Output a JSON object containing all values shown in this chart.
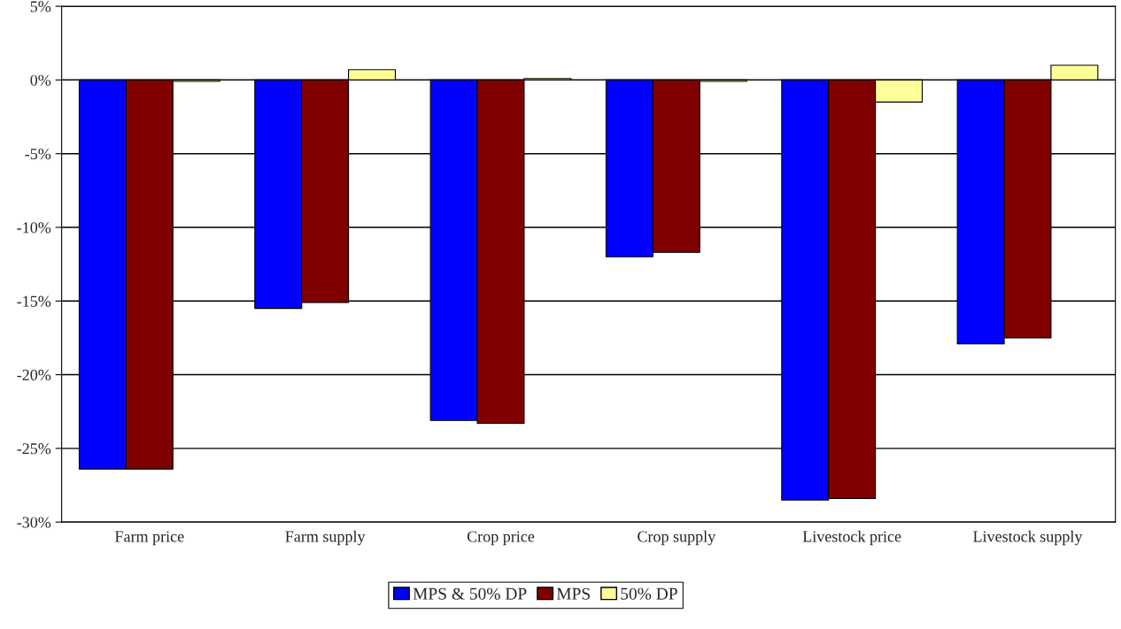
{
  "chart_data": {
    "type": "bar",
    "categories": [
      "Farm price",
      "Farm supply",
      "Crop price",
      "Crop supply",
      "Livestock price",
      "Livestock supply"
    ],
    "series": [
      {
        "name": "MPS & 50% DP",
        "color": "#0000ff",
        "values": [
          -26.4,
          -15.5,
          -23.1,
          -12.0,
          -28.5,
          -17.9
        ]
      },
      {
        "name": "MPS",
        "color": "#800000",
        "values": [
          -26.4,
          -15.1,
          -23.3,
          -11.7,
          -28.4,
          -17.5
        ]
      },
      {
        "name": "50% DP",
        "color": "#ffff99",
        "values": [
          -0.1,
          0.7,
          0.1,
          -0.1,
          -1.5,
          1.0
        ]
      }
    ],
    "ylim": [
      -30,
      5
    ],
    "yticks": [
      {
        "value": -30,
        "label": "-30%"
      },
      {
        "value": -25,
        "label": "-25%"
      },
      {
        "value": -20,
        "label": "-20%"
      },
      {
        "value": -15,
        "label": "-15%"
      },
      {
        "value": -10,
        "label": "-10%"
      },
      {
        "value": -5,
        "label": "-5%"
      },
      {
        "value": 0,
        "label": "0%"
      },
      {
        "value": 5,
        "label": "5%"
      }
    ],
    "grid": "y",
    "legend": "bottom"
  }
}
